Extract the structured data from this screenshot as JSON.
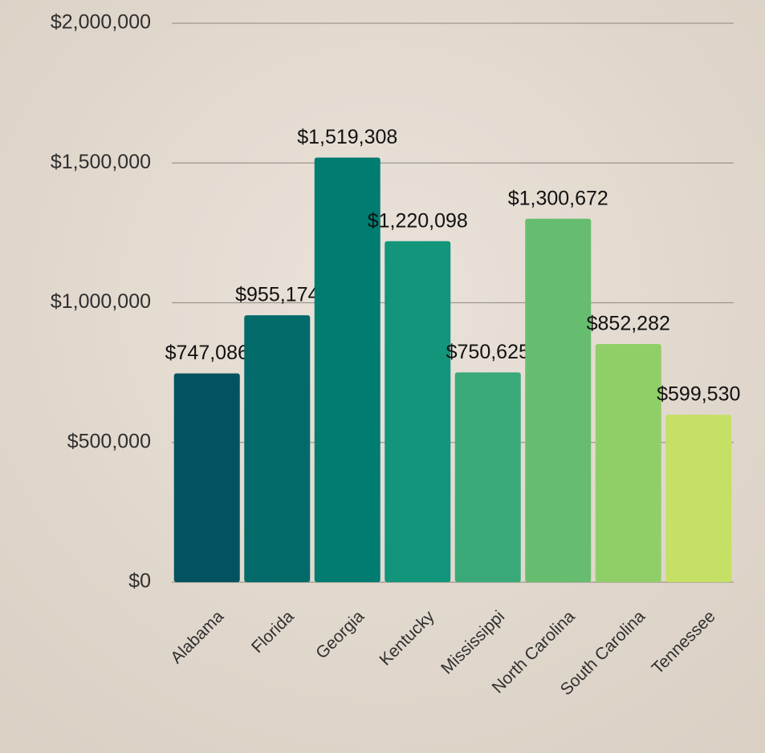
{
  "chart_data": {
    "type": "bar",
    "categories": [
      "Alabama",
      "Florida",
      "Georgia",
      "Kentucky",
      "Mississippi",
      "North Carolina",
      "South Carolina",
      "Tennessee"
    ],
    "values": [
      747086,
      955174,
      1519308,
      1220098,
      750625,
      1300672,
      852282,
      599530
    ],
    "value_labels": [
      "$747,086",
      "$955,174",
      "$1,519,308",
      "$1,220,098",
      "$750,625",
      "$1,300,672",
      "$852,282",
      "$599,530"
    ],
    "colors": [
      "#02535f",
      "#036a6a",
      "#007c70",
      "#12957a",
      "#3aa978",
      "#66bd6f",
      "#90cf68",
      "#c5e065"
    ],
    "ylim": [
      0,
      2000000
    ],
    "yticks": [
      {
        "value": 0,
        "label": "$0"
      },
      {
        "value": 500000,
        "label": "$500,000"
      },
      {
        "value": 1000000,
        "label": "$1,000,000"
      },
      {
        "value": 1500000,
        "label": "$1,500,000"
      },
      {
        "value": 2000000,
        "label": "$2,000,000"
      }
    ],
    "grid": true
  }
}
